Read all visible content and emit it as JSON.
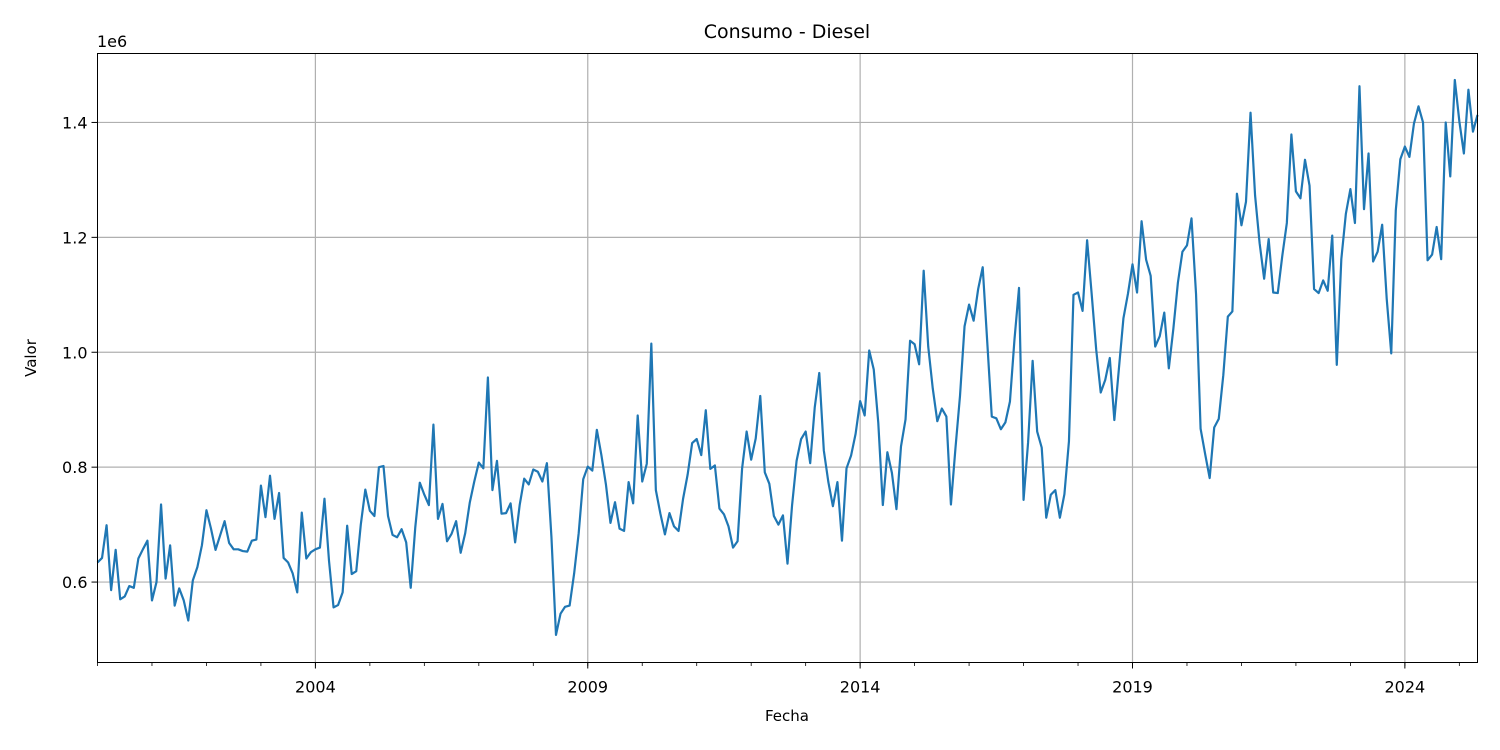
{
  "chart_data": {
    "type": "line",
    "title": "Consumo - Diesel",
    "xlabel": "Fecha",
    "ylabel": "Valor",
    "y_multiplier_label": "1e6",
    "y_multiplier": 1000000,
    "xlim": [
      "2000-01-01",
      "2025-05-01"
    ],
    "ylim": [
      0.46,
      1.52
    ],
    "x_ticks": [
      "2004",
      "2009",
      "2014",
      "2019",
      "2024"
    ],
    "y_ticks": [
      "0.6",
      "0.8",
      "1.0",
      "1.2",
      "1.4"
    ],
    "grid": true,
    "line_color": "#1f77b4",
    "series": [
      {
        "start": "2000-01",
        "values": [
          0.634,
          0.642,
          0.699,
          0.586,
          0.656,
          0.57,
          0.575,
          0.593,
          0.59,
          0.641,
          0.657,
          0.672,
          0.568,
          0.6,
          0.735,
          0.606,
          0.664,
          0.559,
          0.589,
          0.568,
          0.533,
          0.603,
          0.626,
          0.664,
          0.725,
          0.693,
          0.656,
          0.681,
          0.706,
          0.668,
          0.657,
          0.657,
          0.654,
          0.653,
          0.672,
          0.674,
          0.768,
          0.713,
          0.785,
          0.71,
          0.755,
          0.642,
          0.634,
          0.615,
          0.582,
          0.721,
          0.641,
          0.652,
          0.657,
          0.66,
          0.745,
          0.637,
          0.556,
          0.56,
          0.582,
          0.698,
          0.614,
          0.619,
          0.7,
          0.761,
          0.724,
          0.715,
          0.8,
          0.802,
          0.715,
          0.682,
          0.678,
          0.692,
          0.669,
          0.59,
          0.695,
          0.773,
          0.752,
          0.734,
          0.874,
          0.71,
          0.736,
          0.671,
          0.684,
          0.706,
          0.651,
          0.685,
          0.738,
          0.775,
          0.808,
          0.798,
          0.956,
          0.76,
          0.811,
          0.719,
          0.72,
          0.737,
          0.669,
          0.734,
          0.78,
          0.77,
          0.796,
          0.792,
          0.775,
          0.807,
          0.678,
          0.508,
          0.545,
          0.557,
          0.559,
          0.615,
          0.685,
          0.779,
          0.801,
          0.794,
          0.865,
          0.821,
          0.77,
          0.703,
          0.739,
          0.693,
          0.689,
          0.774,
          0.737,
          0.89,
          0.775,
          0.806,
          1.015,
          0.76,
          0.719,
          0.683,
          0.72,
          0.697,
          0.689,
          0.745,
          0.787,
          0.842,
          0.849,
          0.821,
          0.899,
          0.797,
          0.803,
          0.728,
          0.718,
          0.697,
          0.66,
          0.671,
          0.798,
          0.862,
          0.813,
          0.85,
          0.924,
          0.791,
          0.771,
          0.715,
          0.7,
          0.716,
          0.632,
          0.733,
          0.811,
          0.849,
          0.862,
          0.807,
          0.904,
          0.964,
          0.829,
          0.774,
          0.732,
          0.774,
          0.672,
          0.798,
          0.82,
          0.858,
          0.915,
          0.89,
          1.003,
          0.97,
          0.877,
          0.734,
          0.826,
          0.79,
          0.727,
          0.836,
          0.883,
          1.02,
          1.014,
          0.979,
          1.142,
          1.01,
          0.937,
          0.88,
          0.902,
          0.888,
          0.735,
          0.833,
          0.924,
          1.045,
          1.083,
          1.055,
          1.11,
          1.148,
          1.018,
          0.888,
          0.885,
          0.866,
          0.878,
          0.914,
          1.022,
          1.112,
          0.743,
          0.843,
          0.985,
          0.862,
          0.834,
          0.712,
          0.752,
          0.76,
          0.712,
          0.753,
          0.845,
          1.1,
          1.104,
          1.072,
          1.195,
          1.102,
          1.005,
          0.93,
          0.952,
          0.99,
          0.882,
          0.971,
          1.059,
          1.102,
          1.153,
          1.104,
          1.228,
          1.161,
          1.133,
          1.01,
          1.028,
          1.069,
          0.972,
          1.041,
          1.121,
          1.175,
          1.186,
          1.233,
          1.101,
          0.867,
          0.823,
          0.781,
          0.869,
          0.884,
          0.96,
          1.062,
          1.071,
          1.276,
          1.221,
          1.262,
          1.417,
          1.273,
          1.19,
          1.128,
          1.197,
          1.104,
          1.103,
          1.168,
          1.225,
          1.379,
          1.28,
          1.268,
          1.335,
          1.29,
          1.11,
          1.103,
          1.125,
          1.107,
          1.203,
          0.978,
          1.162,
          1.241,
          1.284,
          1.225,
          1.463,
          1.249,
          1.346,
          1.158,
          1.175,
          1.222,
          1.093,
          0.998,
          1.247,
          1.336,
          1.358,
          1.34,
          1.398,
          1.428,
          1.4,
          1.16,
          1.17,
          1.218,
          1.162,
          1.4,
          1.306,
          1.474,
          1.402,
          1.346,
          1.457,
          1.384,
          1.413
        ]
      }
    ]
  }
}
